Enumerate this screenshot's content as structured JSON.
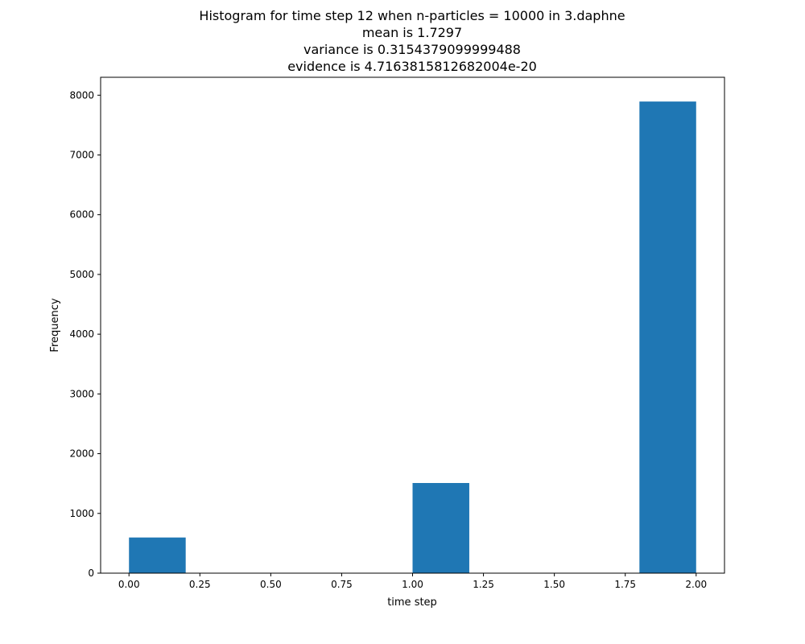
{
  "chart_data": {
    "type": "bar",
    "title_lines": [
      "Histogram for time step 12 when n-particles = 10000 in 3.daphne",
      "mean is 1.7297",
      "variance is 0.3154379099999488",
      "evidence is 4.7163815812682004e-20"
    ],
    "xlabel": "time step",
    "ylabel": "Frequency",
    "xlim": [
      -0.1,
      2.1
    ],
    "ylim": [
      0,
      8300
    ],
    "xticks": [
      0.0,
      0.25,
      0.5,
      0.75,
      1.0,
      1.25,
      1.5,
      1.75,
      2.0
    ],
    "xtick_labels": [
      "0.00",
      "0.25",
      "0.50",
      "0.75",
      "1.00",
      "1.25",
      "1.50",
      "1.75",
      "2.00"
    ],
    "yticks": [
      0,
      1000,
      2000,
      3000,
      4000,
      5000,
      6000,
      7000,
      8000
    ],
    "ytick_labels": [
      "0",
      "1000",
      "2000",
      "3000",
      "4000",
      "5000",
      "6000",
      "7000",
      "8000"
    ],
    "bins": [
      {
        "x0": 0.0,
        "x1": 0.2,
        "value": 597
      },
      {
        "x0": 0.2,
        "x1": 0.4,
        "value": 0
      },
      {
        "x0": 0.4,
        "x1": 0.6,
        "value": 0
      },
      {
        "x0": 0.6,
        "x1": 0.8,
        "value": 0
      },
      {
        "x0": 0.8,
        "x1": 1.0,
        "value": 0
      },
      {
        "x0": 1.0,
        "x1": 1.2,
        "value": 1509
      },
      {
        "x0": 1.2,
        "x1": 1.4,
        "value": 0
      },
      {
        "x0": 1.4,
        "x1": 1.6,
        "value": 0
      },
      {
        "x0": 1.6,
        "x1": 1.8,
        "value": 0
      },
      {
        "x0": 1.8,
        "x1": 2.0,
        "value": 7894
      }
    ],
    "bar_color": "#1f77b4",
    "grid": false,
    "legend": "none"
  }
}
